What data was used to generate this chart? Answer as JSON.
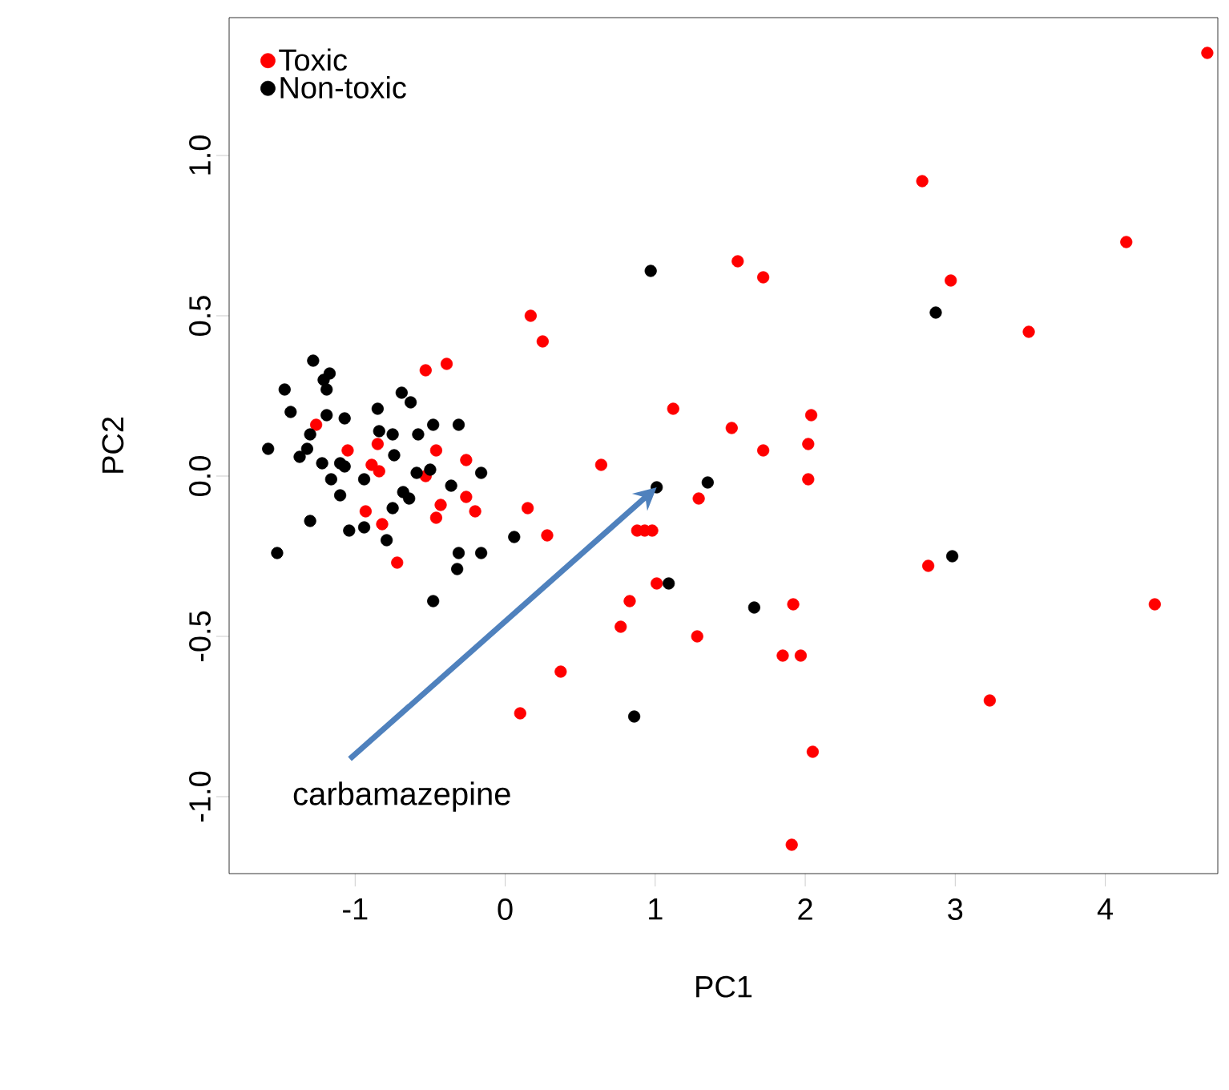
{
  "chart_data": {
    "type": "scatter",
    "xlabel": "PC1",
    "ylabel": "PC2",
    "xlim": [
      -1.84,
      4.75
    ],
    "ylim": [
      -1.24,
      1.43
    ],
    "xticks": [
      -1,
      0,
      1,
      2,
      3,
      4
    ],
    "yticks": [
      {
        "value": -1,
        "label": "-1.0"
      },
      {
        "value": -0.5,
        "label": "-0.5"
      },
      {
        "value": 0,
        "label": "0.0"
      },
      {
        "value": 0.5,
        "label": "0.5"
      },
      {
        "value": 1,
        "label": "1.0"
      }
    ],
    "legend": "top left",
    "marker": "circle",
    "grid": false,
    "annotations": [
      {
        "text": "carbamazepine",
        "x": 1.01,
        "y": -0.035
      }
    ],
    "series": [
      {
        "name": "Toxic",
        "color": "#ff0000",
        "x": [
          -0.53,
          -0.39,
          0.25,
          -1.26,
          -0.85,
          -1.05,
          -0.46,
          -0.26,
          -0.89,
          -0.84,
          -0.53,
          -0.26,
          -0.2,
          -0.43,
          -0.46,
          -0.93,
          -0.82,
          -0.72,
          0.15,
          0.28,
          1.55,
          1.72,
          0.17,
          1.12,
          1.51,
          2.04,
          1.72,
          2.02,
          2.02,
          0.64,
          1.29,
          0.88,
          0.93,
          0.98,
          1.01,
          0.83,
          0.77,
          1.28,
          1.92,
          1.85,
          1.97,
          0.37,
          0.1,
          2.05,
          4.68,
          2.78,
          4.14,
          2.97,
          3.49,
          2.82,
          4.33,
          3.23,
          1.91
        ],
        "values": [
          0.33,
          0.35,
          0.42,
          0.16,
          0.1,
          0.08,
          0.08,
          0.05,
          0.035,
          0.015,
          0.0,
          -0.065,
          -0.11,
          -0.09,
          -0.13,
          -0.11,
          -0.15,
          -0.27,
          -0.1,
          -0.185,
          0.67,
          0.62,
          0.5,
          0.21,
          0.15,
          0.19,
          0.08,
          0.1,
          -0.01,
          0.035,
          -0.07,
          -0.17,
          -0.17,
          -0.17,
          -0.335,
          -0.39,
          -0.47,
          -0.5,
          -0.4,
          -0.56,
          -0.56,
          -0.61,
          -0.74,
          -0.86,
          1.32,
          0.92,
          0.73,
          0.61,
          0.45,
          -0.28,
          -0.4,
          -0.7,
          -1.15
        ]
      },
      {
        "name": "Non-toxic",
        "color": "#000000",
        "x": [
          -1.28,
          -1.17,
          -1.21,
          -1.19,
          -1.47,
          -1.43,
          -0.85,
          -0.69,
          -0.63,
          -1.19,
          -1.07,
          -0.84,
          -0.75,
          -0.58,
          -0.48,
          -0.31,
          -1.58,
          -1.37,
          -1.32,
          -1.3,
          -1.22,
          -1.1,
          -0.74,
          -0.94,
          -1.16,
          -1.1,
          -1.07,
          -0.59,
          -0.5,
          -0.16,
          -0.36,
          -0.68,
          -0.64,
          -0.75,
          -1.3,
          -1.04,
          -0.94,
          -0.79,
          -1.52,
          -0.31,
          -0.16,
          -0.32,
          0.06,
          -0.48,
          0.97,
          1.01,
          1.35,
          1.09,
          1.66,
          0.86,
          2.87,
          2.98
        ],
        "values": [
          0.36,
          0.32,
          0.3,
          0.27,
          0.27,
          0.2,
          0.21,
          0.26,
          0.23,
          0.19,
          0.18,
          0.14,
          0.13,
          0.13,
          0.16,
          0.16,
          0.085,
          0.06,
          0.085,
          0.13,
          0.04,
          0.04,
          0.065,
          -0.01,
          -0.01,
          -0.06,
          0.03,
          0.01,
          0.02,
          0.01,
          -0.03,
          -0.05,
          -0.07,
          -0.1,
          -0.14,
          -0.17,
          -0.16,
          -0.2,
          -0.24,
          -0.24,
          -0.24,
          -0.29,
          -0.19,
          -0.39,
          0.64,
          -0.035,
          -0.02,
          -0.335,
          -0.41,
          -0.75,
          0.51,
          -0.25
        ]
      }
    ]
  }
}
